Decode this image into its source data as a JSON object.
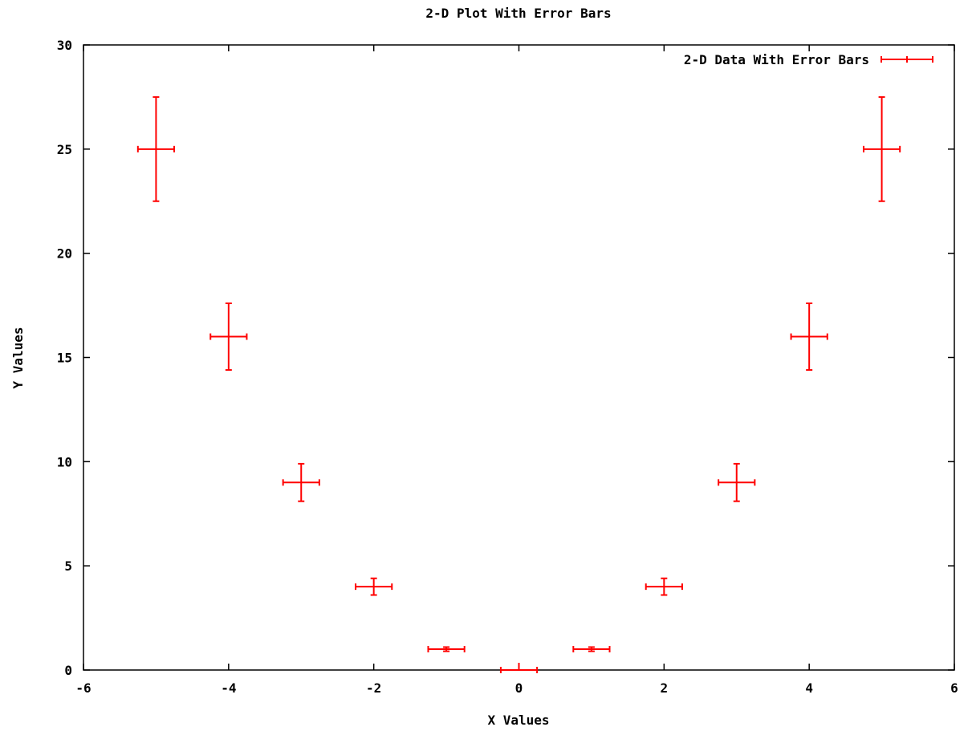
{
  "chart_data": {
    "type": "scatter",
    "title": "2-D Plot With Error Bars",
    "xlabel": "X Values",
    "ylabel": "Y Values",
    "xlim": [
      -6,
      6
    ],
    "ylim": [
      0,
      30
    ],
    "xticks": [
      -6,
      -4,
      -2,
      0,
      2,
      4,
      6
    ],
    "yticks": [
      0,
      5,
      10,
      15,
      20,
      25,
      30
    ],
    "grid": false,
    "legend_position": "top-right",
    "series": [
      {
        "name": "2-D Data With Error Bars",
        "color": "#ff0000",
        "points": [
          {
            "x": -5,
            "y": 25,
            "xerr": 0.25,
            "yerr": 2.5
          },
          {
            "x": -4,
            "y": 16,
            "xerr": 0.25,
            "yerr": 1.6
          },
          {
            "x": -3,
            "y": 9,
            "xerr": 0.25,
            "yerr": 0.9
          },
          {
            "x": -2,
            "y": 4,
            "xerr": 0.25,
            "yerr": 0.4
          },
          {
            "x": -1,
            "y": 1,
            "xerr": 0.25,
            "yerr": 0.1
          },
          {
            "x": 0,
            "y": 0,
            "xerr": 0.25,
            "yerr": 0
          },
          {
            "x": 1,
            "y": 1,
            "xerr": 0.25,
            "yerr": 0.1
          },
          {
            "x": 2,
            "y": 4,
            "xerr": 0.25,
            "yerr": 0.4
          },
          {
            "x": 3,
            "y": 9,
            "xerr": 0.25,
            "yerr": 0.9
          },
          {
            "x": 4,
            "y": 16,
            "xerr": 0.25,
            "yerr": 1.6
          },
          {
            "x": 5,
            "y": 25,
            "xerr": 0.25,
            "yerr": 2.5
          }
        ]
      }
    ]
  }
}
